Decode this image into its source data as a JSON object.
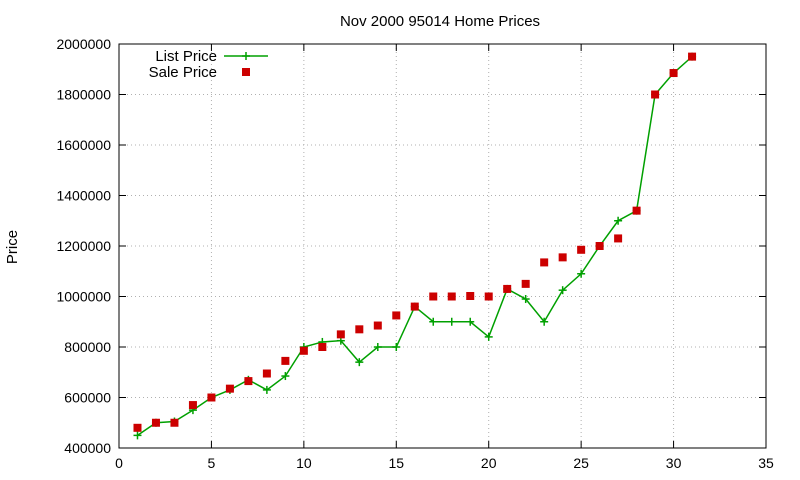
{
  "chart_data": {
    "type": "line",
    "title": "Nov 2000 95014 Home Prices",
    "xlabel": "",
    "ylabel": "Price",
    "xlim": [
      0,
      35
    ],
    "ylim": [
      400000,
      2000000
    ],
    "xticks": [
      0,
      5,
      10,
      15,
      20,
      25,
      30,
      35
    ],
    "yticks": [
      400000,
      600000,
      800000,
      1000000,
      1200000,
      1400000,
      1600000,
      1800000,
      2000000
    ],
    "grid": true,
    "legend_position": "top-left",
    "series": [
      {
        "name": "List Price",
        "kind": "line-points",
        "color": "#00a000",
        "marker": "plus",
        "x": [
          1,
          2,
          3,
          4,
          5,
          6,
          7,
          8,
          9,
          10,
          11,
          12,
          13,
          14,
          15,
          16,
          17,
          18,
          19,
          20,
          21,
          22,
          23,
          24,
          25,
          26,
          27,
          28,
          29,
          30,
          31
        ],
        "y": [
          450000,
          500000,
          505000,
          550000,
          600000,
          630000,
          670000,
          630000,
          685000,
          800000,
          820000,
          825000,
          740000,
          800000,
          800000,
          960000,
          900000,
          900000,
          900000,
          840000,
          1030000,
          990000,
          900000,
          1025000,
          1090000,
          1200000,
          1300000,
          1340000,
          1800000,
          1885000,
          1950000
        ]
      },
      {
        "name": "Sale Price",
        "kind": "points",
        "color": "#cc0000",
        "marker": "square",
        "x": [
          1,
          2,
          3,
          4,
          5,
          6,
          7,
          8,
          9,
          10,
          11,
          12,
          13,
          14,
          15,
          16,
          17,
          18,
          19,
          20,
          21,
          22,
          23,
          24,
          25,
          26,
          27,
          28,
          29,
          30,
          31
        ],
        "y": [
          480000,
          500000,
          500000,
          570000,
          600000,
          635000,
          665000,
          695000,
          745000,
          785000,
          800000,
          850000,
          870000,
          885000,
          925000,
          960000,
          1000000,
          1000000,
          1002000,
          1000000,
          1030000,
          1050000,
          1135000,
          1155000,
          1185000,
          1200000,
          1230000,
          1340000,
          1800000,
          1885000,
          1950000
        ]
      }
    ]
  }
}
